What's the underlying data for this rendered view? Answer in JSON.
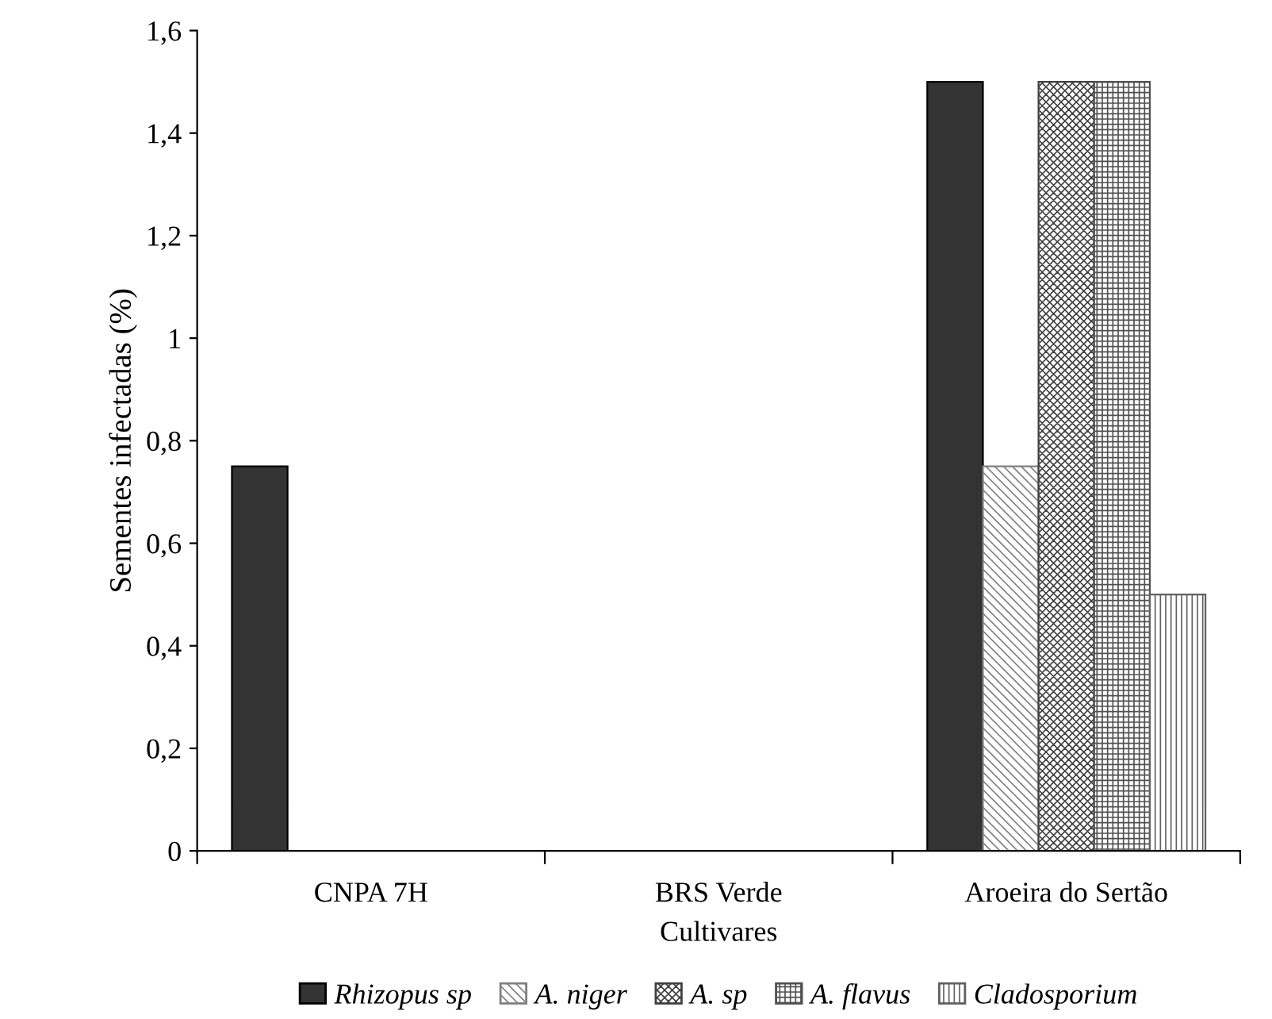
{
  "chart_data": {
    "type": "bar",
    "xlabel": "Cultivares",
    "ylabel": "Sementes infectadas (%)",
    "categories": [
      "CNPA 7H",
      "BRS Verde",
      "Aroeira do Sertão"
    ],
    "series": [
      {
        "name": "Rhizopus sp",
        "color": "#333333",
        "values": [
          0.75,
          0,
          1.5
        ]
      },
      {
        "name": "A. niger",
        "color": "#808080",
        "values": [
          0,
          0,
          0.75
        ]
      },
      {
        "name": "A. sp",
        "color": "#404040",
        "values": [
          0,
          0,
          1.5
        ]
      },
      {
        "name": "A. flavus",
        "color": "#505050",
        "values": [
          0,
          0,
          1.5
        ]
      },
      {
        "name": "Cladosporium",
        "color": "#606060",
        "values": [
          0,
          0,
          0.5
        ]
      }
    ],
    "ylim": [
      0,
      1.6
    ],
    "yticks": [
      0,
      {
        "value": 0.2,
        "label": "0,2"
      },
      {
        "value": 0.4,
        "label": "0,4"
      },
      {
        "value": 0.6,
        "label": "0,6"
      },
      {
        "value": 0.8,
        "label": "0,8"
      },
      1,
      {
        "value": 1.2,
        "label": "1,2"
      },
      {
        "value": 1.4,
        "label": "1,4"
      },
      {
        "value": 1.6,
        "label": "1,6"
      }
    ],
    "legend": "bottom",
    "grid": false
  }
}
